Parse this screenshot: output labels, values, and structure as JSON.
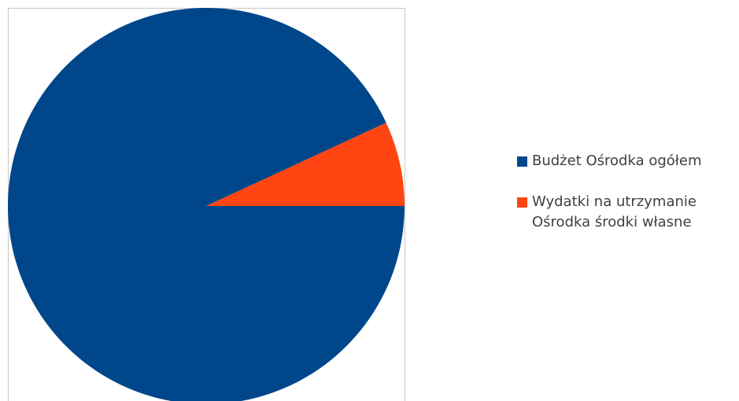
{
  "chart_data": {
    "type": "pie",
    "title": "",
    "slices": [
      {
        "name": "Budżet Ośrodka ogółem",
        "value": 93.1,
        "color": "#00468B"
      },
      {
        "name": "Wydatki na utrzymanie Ośrodka środki własne",
        "value": 6.9,
        "color": "#FF4511"
      }
    ],
    "legend_position": "right"
  }
}
